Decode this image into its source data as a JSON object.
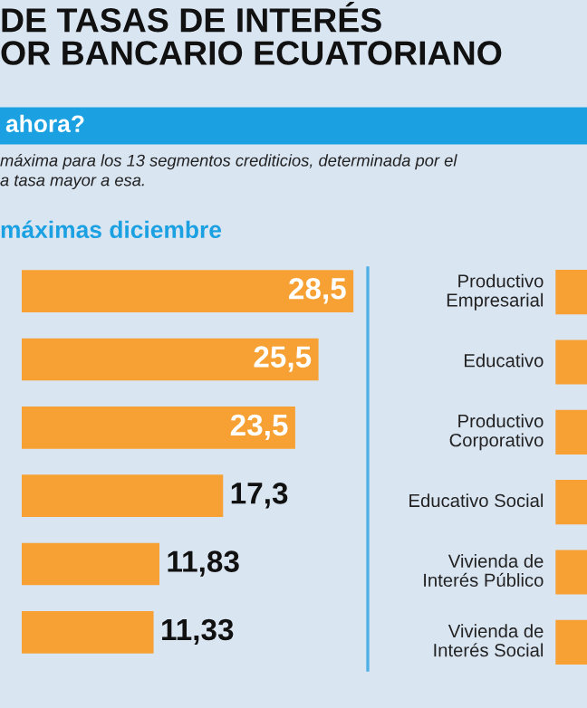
{
  "chart_data": [
    {
      "type": "bar",
      "orientation": "horizontal",
      "title": "DE TASAS DE INTERÉS\nOR BANCARIO ECUATORIANO",
      "subtitle": "ahora?",
      "annotations": [
        "máxima para los 13 segmentos crediticios, determinada por el\na tasa mayor a esa.",
        "máximas diciembre"
      ],
      "categories": [
        null,
        null,
        null,
        null,
        null,
        null
      ],
      "values": [
        28.5,
        25.5,
        23.5,
        17.3,
        11.83,
        11.33
      ],
      "value_labels": [
        "28,5",
        "25,5",
        "23,5",
        "17,3",
        "11,83",
        "11,33"
      ],
      "color": "#f7a033",
      "xlim": [
        0,
        28.8
      ],
      "tick_labels": false,
      "grid": false,
      "legend": false
    },
    {
      "type": "other",
      "categories": [
        "Productivo\nEmpresarial",
        "Educativo",
        "Productivo\nCorporativo",
        "Educativo Social",
        "Vivienda de\nInterés Público",
        "Vivienda de\nInterés Social"
      ]
    }
  ]
}
